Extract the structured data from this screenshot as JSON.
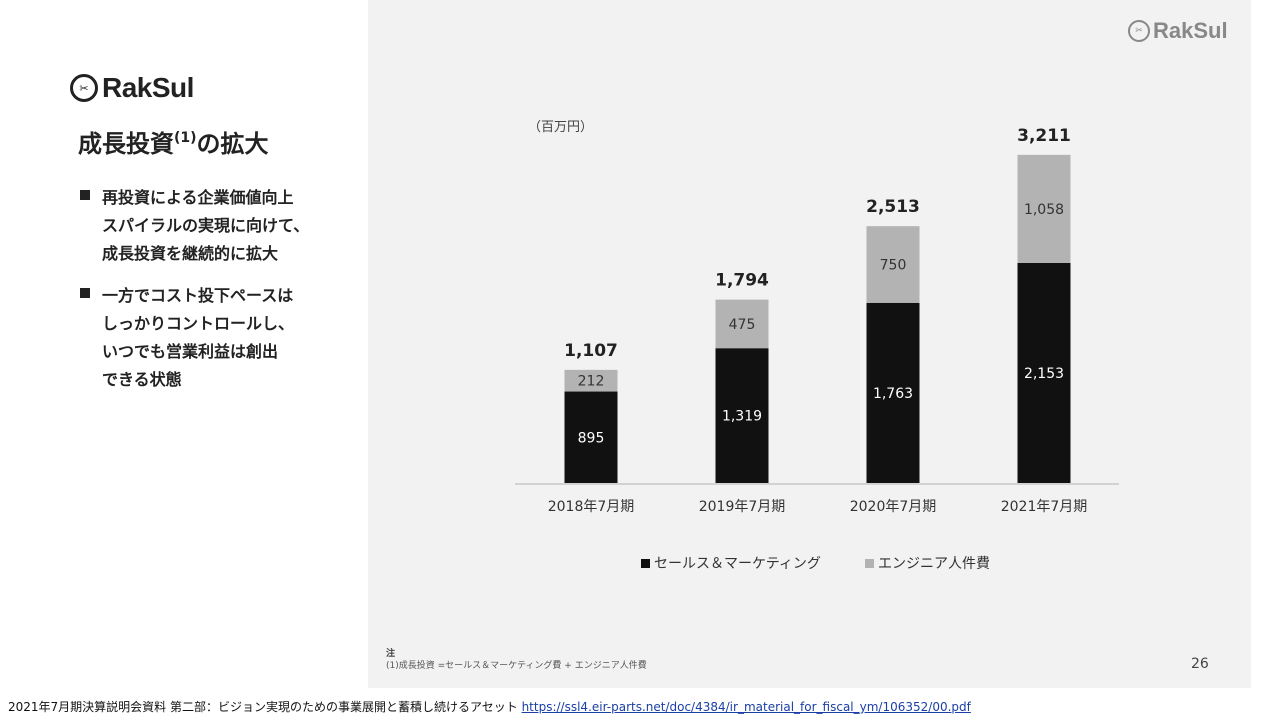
{
  "logo": {
    "main_text": "RakSul",
    "corner_text": "RakSul",
    "mark_text": "✂"
  },
  "title": {
    "text": "成長投資",
    "sup": "(1)",
    "suffix": "の拡大"
  },
  "bullets": [
    {
      "lines": [
        "再投資による企業価値向上",
        "スパイラルの実現に向けて、",
        "成長投資を継続的に拡大"
      ]
    },
    {
      "lines": [
        "一方でコスト投下ペースは",
        "しっかりコントロールし、",
        "いつでも営業利益は創出",
        "できる状態"
      ]
    }
  ],
  "chart_data": {
    "type": "bar",
    "stacked": true,
    "unit_label": "（百万円）",
    "categories": [
      "2018年7月期",
      "2019年7月期",
      "2020年7月期",
      "2021年7月期"
    ],
    "series": [
      {
        "name": "セールス＆マーケティング",
        "values": [
          895,
          1319,
          1763,
          2153
        ],
        "color": "#111111",
        "label_color": "#ffffff"
      },
      {
        "name": "エンジニア人件費",
        "values": [
          212,
          475,
          750,
          1058
        ],
        "color": "#b3b3b3",
        "label_color": "#333333"
      }
    ],
    "totals": [
      1107,
      1794,
      2513,
      3211
    ],
    "total_labels": [
      "1,107",
      "1,794",
      "2,513",
      "3,211"
    ],
    "value_labels": [
      [
        "895",
        "1,319",
        "1,763",
        "2,153"
      ],
      [
        "212",
        "475",
        "750",
        "1,058"
      ]
    ],
    "legend_position": "bottom-center",
    "grid": false
  },
  "note": {
    "head": "注",
    "text": "(1)成長投資 =セールス＆マーケティング費 + エンジニア人件費"
  },
  "page_number": "26",
  "source": {
    "text": "2021年7月期決算説明会資料 第二部：ビジョン実現のための事業展開と蓄積し続けるアセット ",
    "link": "https://ssl4.eir-parts.net/doc/4384/ir_material_for_fiscal_ym/106352/00.pdf"
  }
}
